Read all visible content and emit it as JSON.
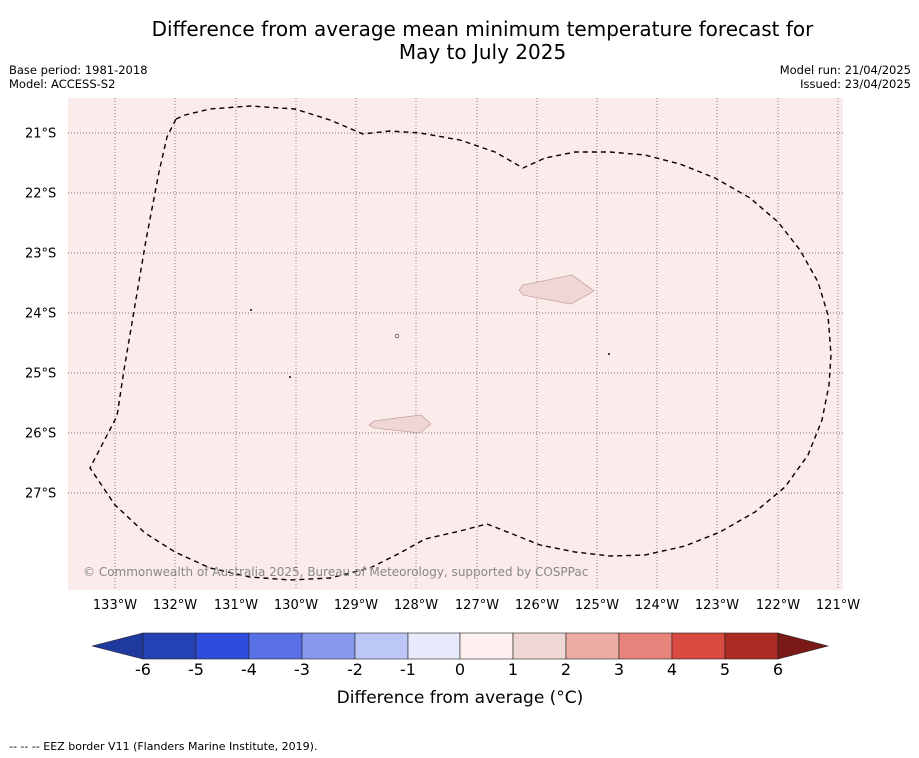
{
  "header": {
    "title_line1": "Difference from average mean minimum temperature forecast for",
    "title_line2": "May to July 2025",
    "base_period": "Base period: 1981-2018",
    "model": "Model: ACCESS-S2",
    "model_run": "Model run: 21/04/2025",
    "issued": "Issued: 23/04/2025"
  },
  "map": {
    "background_color": "#fbebea",
    "longitudes": [
      "133°W",
      "132°W",
      "131°W",
      "130°W",
      "129°W",
      "128°W",
      "127°W",
      "126°W",
      "125°W",
      "124°W",
      "123°W",
      "122°W",
      "121°W"
    ],
    "latitudes": [
      "21°S",
      "22°S",
      "23°S",
      "24°S",
      "25°S",
      "26°S",
      "27°S"
    ],
    "copyright": "© Commonwealth of Australia 2025, Bureau of Meteorology, supported by COSPPac",
    "eez_border_style": "dashed black"
  },
  "colorbar": {
    "ticks": [
      "-6",
      "-5",
      "-4",
      "-3",
      "-2",
      "-1",
      "0",
      "1",
      "2",
      "3",
      "4",
      "5",
      "6"
    ],
    "colors": [
      "#1f3a9e",
      "#2d4cdb",
      "#5a70e6",
      "#8799ef",
      "#bdc7f7",
      "#e6eafb",
      "#fdf0ee",
      "#eed7d4",
      "#edaba6",
      "#e8837c",
      "#d94a40",
      "#ab2a22",
      "#7a1a16"
    ],
    "label": "Difference from average (°C)"
  },
  "footer": {
    "legend_text": "--  --  -- EEZ border V11 (Flanders Marine Institute, 2019)."
  }
}
